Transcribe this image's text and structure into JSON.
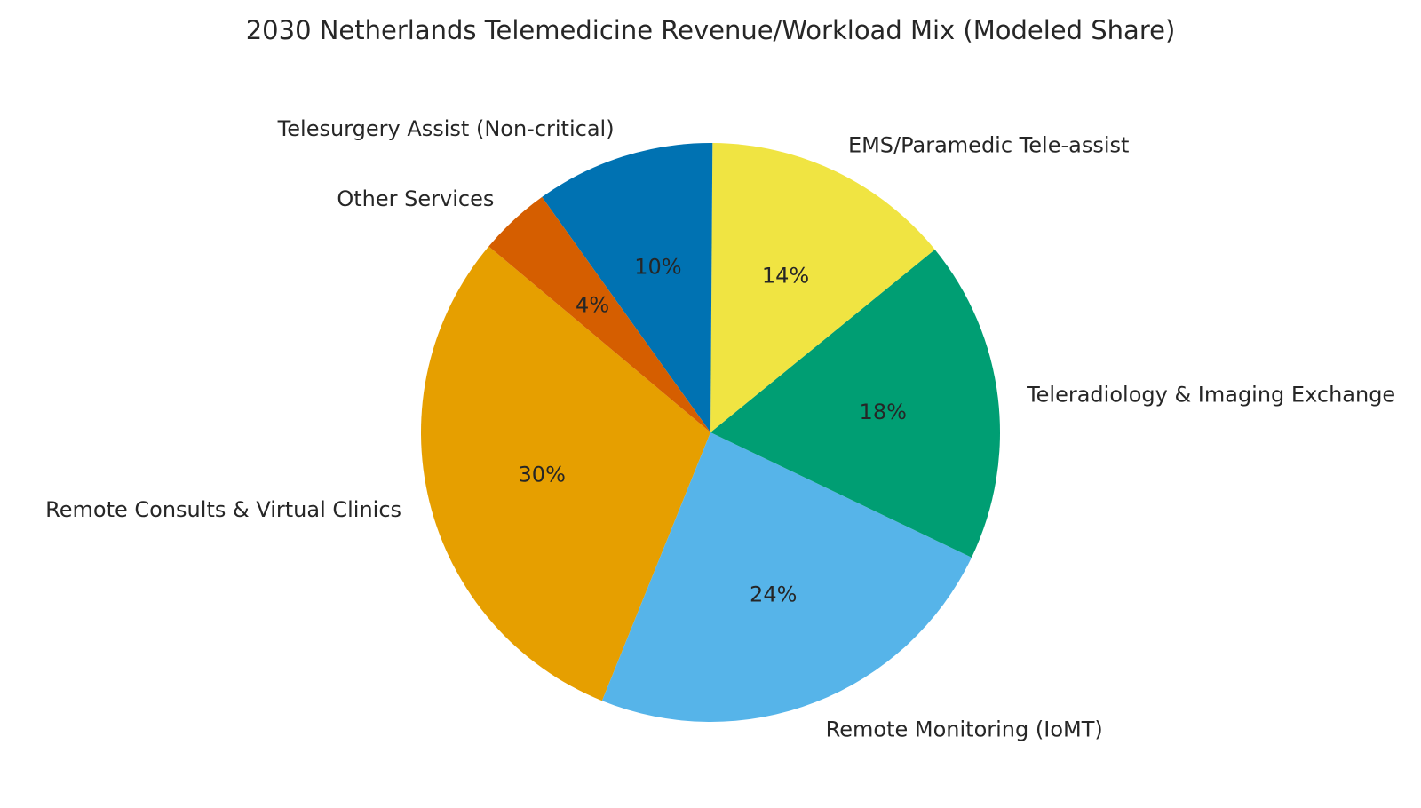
{
  "chart_data": {
    "type": "pie",
    "title": "2030 Netherlands Telemedicine Revenue/Workload Mix (Modeled Share)",
    "slices": [
      {
        "label": "Remote Consults & Virtual Clinics",
        "value": 30,
        "pct_label": "30%",
        "color": "#E69F00"
      },
      {
        "label": "Remote Monitoring (IoMT)",
        "value": 24,
        "pct_label": "24%",
        "color": "#56B4E9"
      },
      {
        "label": "Teleradiology & Imaging Exchange",
        "value": 18,
        "pct_label": "18%",
        "color": "#009E73"
      },
      {
        "label": "EMS/Paramedic Tele-assist",
        "value": 14,
        "pct_label": "14%",
        "color": "#F0E442"
      },
      {
        "label": "Telesurgery Assist (Non-critical)",
        "value": 10,
        "pct_label": "10%",
        "color": "#0072B2"
      },
      {
        "label": "Other Services",
        "value": 4,
        "pct_label": "4%",
        "color": "#D55E00"
      }
    ],
    "start_angle_deg": 140,
    "direction": "counterclockwise",
    "legend": "none"
  }
}
